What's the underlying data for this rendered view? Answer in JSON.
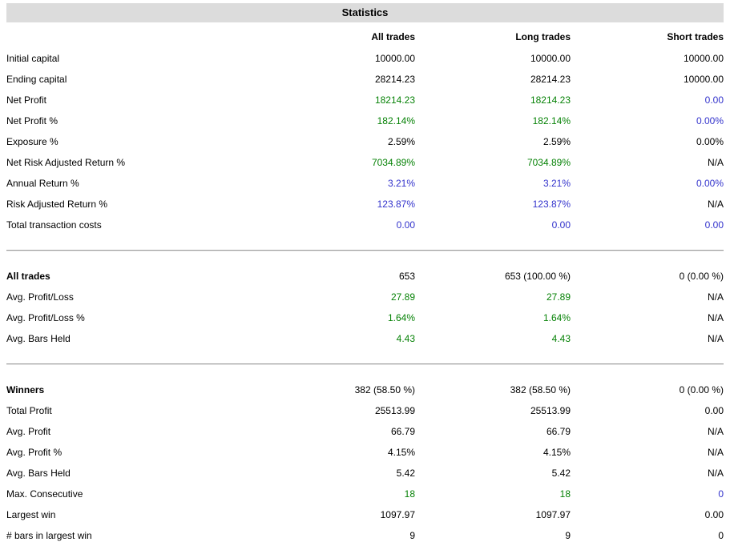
{
  "colors": {
    "positive_value": "#068206",
    "highlight_value": "#3333cc",
    "normal_value": "#000000",
    "title_band_bg": "#dcdcdc",
    "divider": "#9c9c9c"
  },
  "report": {
    "title": "Statistics",
    "columns": [
      "All trades",
      "Long trades",
      "Short trades"
    ],
    "sections": [
      {
        "rows": [
          {
            "label": "Initial capital",
            "bold": false,
            "values": [
              "10000.00",
              "10000.00",
              "10000.00"
            ],
            "colors": [
              "black",
              "black",
              "black"
            ]
          },
          {
            "label": "Ending capital",
            "bold": false,
            "values": [
              "28214.23",
              "28214.23",
              "10000.00"
            ],
            "colors": [
              "black",
              "black",
              "black"
            ]
          },
          {
            "label": "Net Profit",
            "bold": false,
            "values": [
              "18214.23",
              "18214.23",
              "0.00"
            ],
            "colors": [
              "green",
              "green",
              "blue"
            ]
          },
          {
            "label": "Net Profit %",
            "bold": false,
            "values": [
              "182.14%",
              "182.14%",
              "0.00%"
            ],
            "colors": [
              "green",
              "green",
              "blue"
            ]
          },
          {
            "label": "Exposure %",
            "bold": false,
            "values": [
              "2.59%",
              "2.59%",
              "0.00%"
            ],
            "colors": [
              "black",
              "black",
              "black"
            ]
          },
          {
            "label": "Net Risk Adjusted Return %",
            "bold": false,
            "values": [
              "7034.89%",
              "7034.89%",
              "N/A"
            ],
            "colors": [
              "green",
              "green",
              "black"
            ]
          },
          {
            "label": "Annual Return %",
            "bold": false,
            "values": [
              "3.21%",
              "3.21%",
              "0.00%"
            ],
            "colors": [
              "blue",
              "blue",
              "blue"
            ]
          },
          {
            "label": "Risk Adjusted Return %",
            "bold": false,
            "values": [
              "123.87%",
              "123.87%",
              "N/A"
            ],
            "colors": [
              "blue",
              "blue",
              "black"
            ]
          },
          {
            "label": "Total transaction costs",
            "bold": false,
            "values": [
              "0.00",
              "0.00",
              "0.00"
            ],
            "colors": [
              "blue",
              "blue",
              "blue"
            ]
          }
        ]
      },
      {
        "rows": [
          {
            "label": "All trades",
            "bold": true,
            "values": [
              "653",
              "653 (100.00 %)",
              "0 (0.00 %)"
            ],
            "colors": [
              "black",
              "black",
              "black"
            ]
          },
          {
            "label": "Avg. Profit/Loss",
            "bold": false,
            "values": [
              "27.89",
              "27.89",
              "N/A"
            ],
            "colors": [
              "green",
              "green",
              "black"
            ]
          },
          {
            "label": "Avg. Profit/Loss %",
            "bold": false,
            "values": [
              "1.64%",
              "1.64%",
              "N/A"
            ],
            "colors": [
              "green",
              "green",
              "black"
            ]
          },
          {
            "label": "Avg. Bars Held",
            "bold": false,
            "values": [
              "4.43",
              "4.43",
              "N/A"
            ],
            "colors": [
              "green",
              "green",
              "black"
            ]
          }
        ]
      },
      {
        "rows": [
          {
            "label": "Winners",
            "bold": true,
            "values": [
              "382 (58.50 %)",
              "382 (58.50 %)",
              "0 (0.00 %)"
            ],
            "colors": [
              "black",
              "black",
              "black"
            ]
          },
          {
            "label": "Total Profit",
            "bold": false,
            "values": [
              "25513.99",
              "25513.99",
              "0.00"
            ],
            "colors": [
              "black",
              "black",
              "black"
            ]
          },
          {
            "label": "Avg. Profit",
            "bold": false,
            "values": [
              "66.79",
              "66.79",
              "N/A"
            ],
            "colors": [
              "black",
              "black",
              "black"
            ]
          },
          {
            "label": "Avg. Profit %",
            "bold": false,
            "values": [
              "4.15%",
              "4.15%",
              "N/A"
            ],
            "colors": [
              "black",
              "black",
              "black"
            ]
          },
          {
            "label": "Avg. Bars Held",
            "bold": false,
            "values": [
              "5.42",
              "5.42",
              "N/A"
            ],
            "colors": [
              "black",
              "black",
              "black"
            ]
          },
          {
            "label": "Max. Consecutive",
            "bold": false,
            "values": [
              "18",
              "18",
              "0"
            ],
            "colors": [
              "green",
              "green",
              "blue"
            ]
          },
          {
            "label": "Largest win",
            "bold": false,
            "values": [
              "1097.97",
              "1097.97",
              "0.00"
            ],
            "colors": [
              "black",
              "black",
              "black"
            ]
          },
          {
            "label": "# bars in largest win",
            "bold": false,
            "values": [
              "9",
              "9",
              "0"
            ],
            "colors": [
              "black",
              "black",
              "black"
            ]
          }
        ]
      }
    ]
  }
}
